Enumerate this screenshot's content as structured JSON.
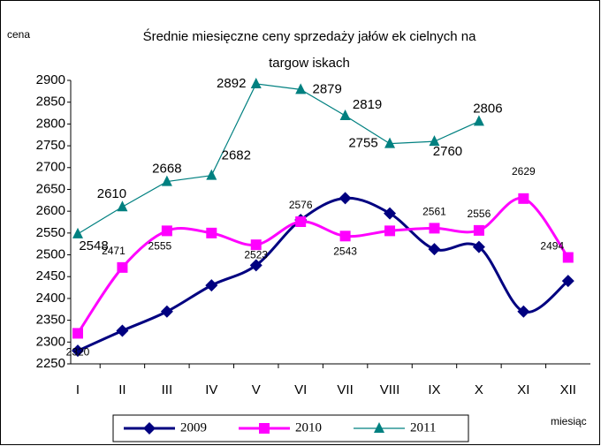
{
  "chart_data": {
    "type": "line",
    "title": [
      "Średnie miesięczne ceny sprzedaży jałów ek cielnych na",
      "targow iskach"
    ],
    "y_label": "cena",
    "x_label": "miesiąc",
    "categories": [
      "I",
      "II",
      "III",
      "IV",
      "V",
      "VI",
      "VII",
      "VIII",
      "IX",
      "X",
      "XI",
      "XII"
    ],
    "ylim": [
      2250,
      2900
    ],
    "yticks": [
      2250,
      2300,
      2350,
      2400,
      2450,
      2500,
      2550,
      2600,
      2650,
      2700,
      2750,
      2800,
      2850,
      2900
    ],
    "series": [
      {
        "name": "2009",
        "color": "#000080",
        "marker": "diamond",
        "smooth": true,
        "values": [
          2280,
          2326,
          2370,
          2430,
          2476,
          2580,
          2630,
          2595,
          2513,
          2518,
          2370,
          2440
        ]
      },
      {
        "name": "2010",
        "color": "#ff00ff",
        "marker": "square",
        "smooth": true,
        "values": [
          2320,
          2471,
          2555,
          2550,
          2523,
          2576,
          2543,
          2555,
          2561,
          2556,
          2629,
          2494
        ],
        "value_labels": [
          "2320",
          "2471",
          "2555",
          null,
          "2523",
          "2576",
          "2543",
          null,
          "2561",
          "2556",
          "2629",
          "2494"
        ]
      },
      {
        "name": "2011",
        "color": "#008080",
        "marker": "triangle",
        "smooth": false,
        "values": [
          2548,
          2610,
          2668,
          2682,
          2892,
          2879,
          2819,
          2755,
          2760,
          2806,
          null,
          null
        ],
        "value_labels": [
          "2548",
          "2610",
          "2668",
          "2682",
          "2892",
          "2879",
          "2819",
          "2755",
          "2760",
          "2806",
          null,
          null
        ]
      }
    ]
  }
}
